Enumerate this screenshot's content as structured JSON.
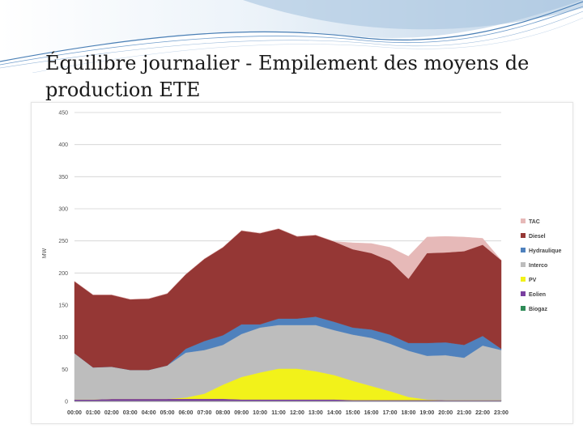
{
  "slide": {
    "title": "Équilibre journalier - Empilement des moyens de production ETE"
  },
  "chart_data": {
    "type": "area",
    "stacked": true,
    "title": "",
    "xlabel": "",
    "ylabel": "MW",
    "ylim": [
      0,
      450
    ],
    "yticks": [
      0,
      50,
      100,
      150,
      200,
      250,
      300,
      350,
      400,
      450
    ],
    "grid": true,
    "legend_position": "right",
    "x": [
      "00:00",
      "01:00",
      "02:00",
      "03:00",
      "04:00",
      "05:00",
      "06:00",
      "07:00",
      "08:00",
      "09:00",
      "10:00",
      "11:00",
      "12:00",
      "13:00",
      "14:00",
      "15:00",
      "16:00",
      "17:00",
      "18:00",
      "19:00",
      "20:00",
      "21:00",
      "22:00",
      "23:00"
    ],
    "x_tick_labels": [
      "00:00",
      "01:00",
      "02:00",
      "03:00",
      "04:00",
      "05:00",
      "06:00",
      "07:00",
      "08:00",
      "09:00",
      "10:00",
      "11:00",
      "12:00",
      "13:00",
      "14:00",
      "15:00",
      "16:00",
      "17:00",
      "18:00",
      "19:00",
      "20:00",
      "21:00",
      "22:00",
      "23:00"
    ],
    "series": [
      {
        "name": "Biogaz",
        "color": "#2e8b57",
        "values": [
          1,
          1,
          1,
          1,
          1,
          1,
          1,
          1,
          1,
          1,
          1,
          1,
          1,
          1,
          1,
          1,
          1,
          1,
          1,
          1,
          1,
          1,
          1,
          1
        ]
      },
      {
        "name": "Eolien",
        "color": "#7a3fa0",
        "values": [
          2,
          2,
          3,
          3,
          3,
          3,
          3,
          3,
          3,
          2,
          2,
          2,
          2,
          2,
          2,
          1,
          1,
          1,
          1,
          1,
          1,
          1,
          1,
          1
        ]
      },
      {
        "name": "PV",
        "color": "#f2f21a",
        "values": [
          0,
          0,
          0,
          0,
          0,
          0,
          2,
          8,
          22,
          35,
          42,
          48,
          48,
          44,
          38,
          30,
          22,
          14,
          5,
          1,
          0,
          0,
          0,
          0
        ]
      },
      {
        "name": "Interco",
        "color": "#bdbdbd",
        "values": [
          72,
          50,
          50,
          45,
          45,
          52,
          70,
          68,
          62,
          67,
          70,
          68,
          68,
          72,
          70,
          72,
          75,
          74,
          72,
          68,
          70,
          66,
          85,
          78
        ]
      },
      {
        "name": "Hydraulique",
        "color": "#4f81bd",
        "values": [
          0,
          0,
          0,
          0,
          0,
          0,
          6,
          14,
          15,
          15,
          5,
          10,
          10,
          13,
          13,
          11,
          13,
          14,
          12,
          20,
          20,
          20,
          15,
          2
        ]
      },
      {
        "name": "Diesel",
        "color": "#953735",
        "values": [
          112,
          113,
          112,
          110,
          111,
          112,
          116,
          128,
          137,
          146,
          142,
          140,
          128,
          127,
          125,
          122,
          119,
          115,
          100,
          140,
          140,
          146,
          142,
          138
        ]
      },
      {
        "name": "TAC",
        "color": "#e6b9b8",
        "values": [
          0,
          0,
          0,
          0,
          0,
          0,
          0,
          0,
          0,
          0,
          0,
          0,
          0,
          0,
          0,
          10,
          15,
          21,
          35,
          25,
          25,
          22,
          10,
          0
        ]
      }
    ],
    "legend": [
      "TAC",
      "Diesel",
      "Hydraulique",
      "Interco",
      "PV",
      "Eolien",
      "Biogaz"
    ]
  }
}
